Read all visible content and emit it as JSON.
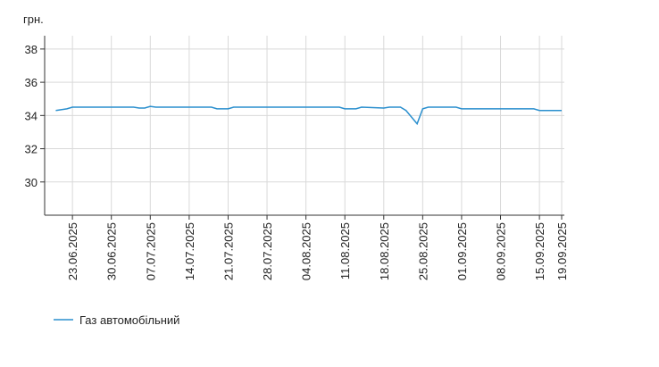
{
  "chart_data": {
    "type": "line",
    "y_label": "грн.",
    "x": [
      "20.06.2025",
      "22.06.2025",
      "23.06.2025",
      "04.07.2025",
      "05.07.2025",
      "06.07.2025",
      "07.07.2025",
      "08.07.2025",
      "18.07.2025",
      "19.07.2025",
      "21.07.2025",
      "22.07.2025",
      "10.08.2025",
      "11.08.2025",
      "13.08.2025",
      "14.08.2025",
      "18.08.2025",
      "19.08.2025",
      "21.08.2025",
      "22.08.2025",
      "24.08.2025",
      "25.08.2025",
      "26.08.2025",
      "31.08.2025",
      "01.09.2025",
      "14.09.2025",
      "15.09.2025",
      "19.09.2025"
    ],
    "series": [
      {
        "name": "Газ автомобільний",
        "color": "#2a8fce",
        "values": [
          34.3,
          34.4,
          34.5,
          34.5,
          34.45,
          34.45,
          34.55,
          34.5,
          34.5,
          34.4,
          34.4,
          34.5,
          34.5,
          34.4,
          34.4,
          34.5,
          34.45,
          34.5,
          34.5,
          34.3,
          33.5,
          34.4,
          34.5,
          34.5,
          34.4,
          34.4,
          34.3,
          34.3
        ]
      }
    ],
    "xlim": [
      "18.06.2025",
      "19.09.2025"
    ],
    "xticks": [
      "23.06.2025",
      "30.06.2025",
      "07.07.2025",
      "14.07.2025",
      "21.07.2025",
      "28.07.2025",
      "04.08.2025",
      "11.08.2025",
      "18.08.2025",
      "25.08.2025",
      "01.09.2025",
      "08.09.2025",
      "15.09.2025",
      "19.09.2025"
    ],
    "ylim": [
      28,
      38.8
    ],
    "yticks": [
      30,
      32,
      34,
      36,
      38
    ],
    "grid": true
  }
}
